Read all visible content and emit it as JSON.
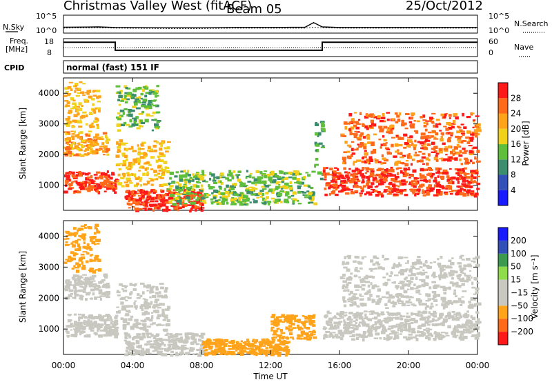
{
  "header": {
    "station": "Christmas Valley West (fitACF)",
    "beam": "Beam 05",
    "date": "25/Oct/2012"
  },
  "colors": {
    "power_scale": [
      "#1a1aff",
      "#3350b8",
      "#3c8d6e",
      "#5fbf3a",
      "#f0d21a",
      "#ffa31a",
      "#ff6a1a",
      "#ff1a1a"
    ],
    "velocity_scale": [
      "#ff1a1a",
      "#ff6a1a",
      "#ffa31a",
      "#c8c8c0",
      "#c8c8c0",
      "#8fdc4a",
      "#3c9a4e",
      "#3350b8",
      "#1a1aff"
    ],
    "ground_scatter": "#c8c8c0"
  },
  "chart_data": [
    {
      "type": "line",
      "panel": "noise",
      "left_label": "N.Sky",
      "right_label": "N.Search",
      "left_ticks": [
        "10^5",
        "10^0"
      ],
      "right_ticks": [
        "10^5",
        "10^0"
      ],
      "yscale": "log",
      "x": [
        "00:00",
        "02:00",
        "03:00",
        "06:00",
        "08:00",
        "10:00",
        "12:00",
        "14:00",
        "14:30",
        "15:00",
        "16:00",
        "20:00",
        "24:00"
      ],
      "series": [
        {
          "values": [
            30,
            40,
            25,
            20,
            20,
            25,
            25,
            30,
            1000,
            40,
            25,
            25,
            25
          ]
        },
        {
          "values": [
            15,
            20,
            15,
            12,
            12,
            15,
            15,
            15,
            30,
            20,
            15,
            15,
            15
          ]
        }
      ]
    },
    {
      "type": "line",
      "panel": "frequency",
      "left_label": "Freq. [MHz]",
      "right_label": "Nave",
      "left_ticks": [
        "18",
        "8"
      ],
      "right_ticks": [
        "60",
        "0"
      ],
      "ylim": [
        8,
        18
      ],
      "x": [
        "00:00",
        "03:00",
        "03:00",
        "15:00",
        "15:00",
        "24:00"
      ],
      "values": [
        16,
        16,
        11.5,
        11.5,
        16,
        16
      ]
    },
    {
      "type": "heatmap",
      "panel": "power",
      "cpid_label": "CPID",
      "cpid_text": "normal (fast) 151 IF",
      "ylabel": "Slant Range [km]",
      "ylim": [
        180,
        4500
      ],
      "yticks": [
        "1000",
        "2000",
        "3000",
        "4000"
      ],
      "colorbar_label": "Power [dB]",
      "colorbar_ticks": [
        "4",
        "8",
        "12",
        "16",
        "20",
        "24",
        "28"
      ],
      "value_range": [
        0,
        30
      ],
      "features": [
        {
          "t": [
            0.0,
            3.0
          ],
          "range": [
            800,
            1500
          ],
          "value": 28
        },
        {
          "t": [
            0.0,
            2.5
          ],
          "range": [
            2000,
            2800
          ],
          "value": 22
        },
        {
          "t": [
            0.0,
            2.0
          ],
          "range": [
            2900,
            4400
          ],
          "value": 20
        },
        {
          "t": [
            3.0,
            6.0
          ],
          "range": [
            1000,
            2500
          ],
          "value": 20
        },
        {
          "t": [
            3.0,
            5.5
          ],
          "range": [
            2800,
            4300
          ],
          "value": 14
        },
        {
          "t": [
            3.5,
            8.0
          ],
          "range": [
            200,
            900
          ],
          "value": 28
        },
        {
          "t": [
            6.0,
            14.5
          ],
          "range": [
            400,
            1500
          ],
          "value": 14
        },
        {
          "t": [
            14.5,
            15.0
          ],
          "range": [
            1200,
            3200
          ],
          "value": 12
        },
        {
          "t": [
            15.0,
            24.0
          ],
          "range": [
            700,
            1600
          ],
          "value": 28
        },
        {
          "t": [
            16.0,
            24.0
          ],
          "range": [
            1700,
            3400
          ],
          "value": 26
        }
      ]
    },
    {
      "type": "heatmap",
      "panel": "velocity",
      "ylabel": "Slant Range [km]",
      "ylim": [
        180,
        4500
      ],
      "yticks": [
        "1000",
        "2000",
        "3000",
        "4000"
      ],
      "colorbar_label": "Velocity [m s⁻¹]",
      "colorbar_ticks": [
        "200",
        "100",
        "50",
        "15",
        "−15",
        "−50",
        "−100",
        "−200"
      ],
      "value_range": [
        -250,
        250
      ],
      "features": [
        {
          "t": [
            0.0,
            3.0
          ],
          "range": [
            800,
            1500
          ],
          "value": 0
        },
        {
          "t": [
            0.0,
            2.5
          ],
          "range": [
            2000,
            2800
          ],
          "value": 0
        },
        {
          "t": [
            0.0,
            2.0
          ],
          "range": [
            2900,
            4400
          ],
          "value": -60
        },
        {
          "t": [
            3.0,
            6.0
          ],
          "range": [
            1000,
            2500
          ],
          "value": 0
        },
        {
          "t": [
            3.5,
            8.0
          ],
          "range": [
            200,
            900
          ],
          "value": 0
        },
        {
          "t": [
            8.0,
            13.0
          ],
          "range": [
            200,
            700
          ],
          "value": -70
        },
        {
          "t": [
            12.0,
            14.5
          ],
          "range": [
            700,
            1500
          ],
          "value": -60
        },
        {
          "t": [
            15.0,
            24.0
          ],
          "range": [
            700,
            1600
          ],
          "value": 0
        },
        {
          "t": [
            16.0,
            24.0
          ],
          "range": [
            1700,
            3400
          ],
          "value": 0
        }
      ]
    }
  ],
  "xaxis": {
    "label": "Time UT",
    "ticks": [
      "00:00",
      "04:00",
      "08:00",
      "12:00",
      "16:00",
      "20:00",
      "00:00"
    ]
  }
}
